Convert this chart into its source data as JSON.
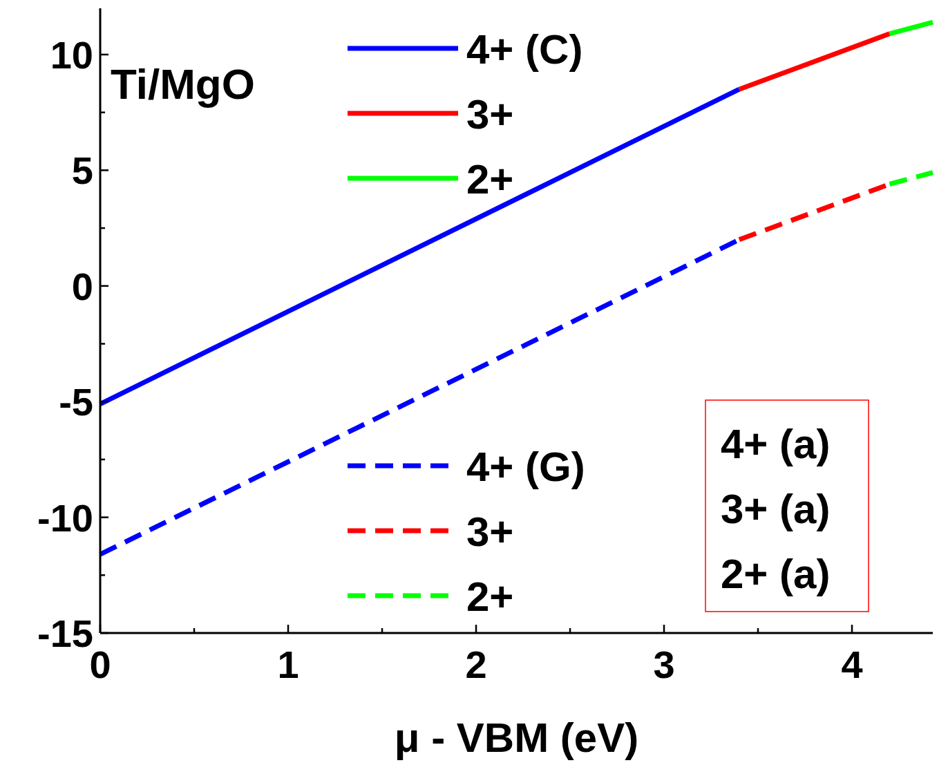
{
  "chart_data": {
    "type": "line",
    "xlabel": "μ - VBM (eV)",
    "xlim": [
      0,
      4.43
    ],
    "ylim": [
      -15,
      12
    ],
    "xticks": [
      0,
      {
        "value": 0.5,
        "label": null
      },
      1,
      {
        "value": 1.5,
        "label": null
      },
      2,
      {
        "value": 2.5,
        "label": null
      },
      3,
      {
        "value": 3.5,
        "label": null
      },
      4
    ],
    "yticks": [
      -15,
      {
        "value": -12.5,
        "label": null
      },
      -10,
      {
        "value": -7.5,
        "label": null
      },
      -5,
      {
        "value": -2.5,
        "label": null
      },
      0,
      {
        "value": 2.5,
        "label": null
      },
      5,
      {
        "value": 7.5,
        "label": null
      },
      10
    ],
    "legend": "left",
    "grid": false,
    "series": [
      {
        "name": "4+ (C)",
        "color": "#0000ff",
        "line_style": "solid",
        "x": [
          0,
          3.4
        ],
        "values": [
          -5.1,
          8.5
        ]
      },
      {
        "name": "3+",
        "color": "#ff0000",
        "line_style": "solid",
        "x": [
          3.4,
          4.2
        ],
        "values": [
          8.5,
          10.9
        ]
      },
      {
        "name": "2+",
        "color": "#00ff00",
        "line_style": "solid",
        "x": [
          4.2,
          4.43
        ],
        "values": [
          10.9,
          11.4
        ]
      },
      {
        "name": "4+ (G)",
        "color": "#0000ff",
        "line_style": "dashed",
        "x": [
          0,
          3.4
        ],
        "values": [
          -11.6,
          2.0
        ]
      },
      {
        "name": "3+",
        "color": "#ff0000",
        "line_style": "dashed",
        "x": [
          3.4,
          4.2
        ],
        "values": [
          2.0,
          4.4
        ]
      },
      {
        "name": "2+",
        "color": "#00ff00",
        "line_style": "dashed",
        "x": [
          4.2,
          4.43
        ],
        "values": [
          4.4,
          4.9
        ]
      }
    ],
    "annotations": [
      "Ti/MgO",
      "4+ (a)",
      "3+ (a)",
      "2+ (a)"
    ]
  }
}
